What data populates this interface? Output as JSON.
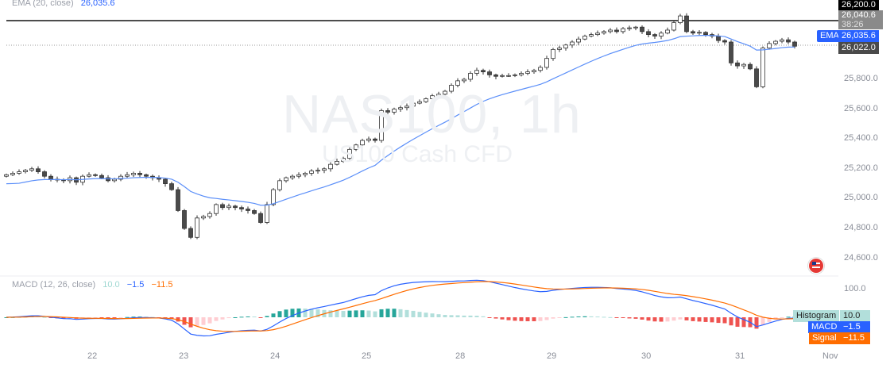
{
  "symbol": {
    "watermark_title": "NAS100, 1h",
    "watermark_subtitle": "US100 Cash CFD"
  },
  "legend": {
    "ema_label": "EMA (20, close)",
    "ema_value": "26,035.6",
    "macd_label": "MACD (12, 26, close)",
    "hist_value": "10.0",
    "macd_value": "−1.5",
    "signal_value": "−11.5"
  },
  "price_tags": {
    "high_line": "26,200.0",
    "last_price": "26,040.6",
    "countdown": "38:26",
    "ema_tag": "EMA",
    "ema_value": "26,035.6",
    "prev_close": "26,022.0"
  },
  "macd_tags": {
    "histogram_label": "Histogram",
    "histogram_value": "10.0",
    "macd_label": "MACD",
    "macd_value": "−1.5",
    "signal_label": "Signal",
    "signal_value": "−11.5",
    "axis_value": "100.0"
  },
  "colors": {
    "up": "#ffffff",
    "down": "#4a4a4a",
    "ema": "#5b8ff9",
    "macd": "#2962ff",
    "signal": "#ff6d00",
    "hist_up": "#26a69a",
    "hist_down": "#ef5350"
  },
  "chart_data": {
    "type": "candlestick",
    "timeframe": "1h",
    "y_ticks": [
      "26,200.0",
      "25,800.0",
      "25,600.0",
      "25,400.0",
      "25,200.0",
      "25,000.0",
      "24,800.0",
      "24,600.0"
    ],
    "x_ticks": [
      "22",
      "23",
      "24",
      "25",
      "28",
      "29",
      "30",
      "31",
      "Nov"
    ],
    "ylim": [
      24550,
      26260
    ],
    "closes": [
      25160,
      25170,
      25180,
      25190,
      25200,
      25180,
      25150,
      25130,
      25125,
      25120,
      25140,
      25110,
      25150,
      25160,
      25155,
      25140,
      25120,
      25130,
      25150,
      25160,
      25170,
      25160,
      25150,
      25140,
      25130,
      25100,
      25060,
      24920,
      24800,
      24740,
      24870,
      24880,
      24900,
      24960,
      24940,
      24950,
      24940,
      24930,
      24920,
      24900,
      24840,
      24960,
      25060,
      25120,
      25140,
      25150,
      25160,
      25170,
      25185,
      25190,
      25200,
      25230,
      25250,
      25270,
      25330,
      25360,
      25390,
      25400,
      25390,
      25590,
      25580,
      25600,
      25610,
      25620,
      25640,
      25650,
      25670,
      25690,
      25700,
      25720,
      25760,
      25790,
      25800,
      25840,
      25860,
      25850,
      25830,
      25820,
      25825,
      25825,
      25830,
      25840,
      25850,
      25860,
      25880,
      25940,
      26000,
      26010,
      26030,
      26050,
      26070,
      26090,
      26100,
      26110,
      26120,
      26130,
      26120,
      26140,
      26145,
      26150,
      26120,
      26100,
      26090,
      26110,
      26130,
      26180,
      26225,
      26120,
      26110,
      26115,
      26100,
      26090,
      26060,
      26050,
      25910,
      25890,
      25900,
      25870,
      25750,
      26010,
      26040,
      26055,
      26065,
      26050,
      26022
    ],
    "ema_period": 20,
    "macd_params": [
      12,
      26,
      9
    ]
  }
}
